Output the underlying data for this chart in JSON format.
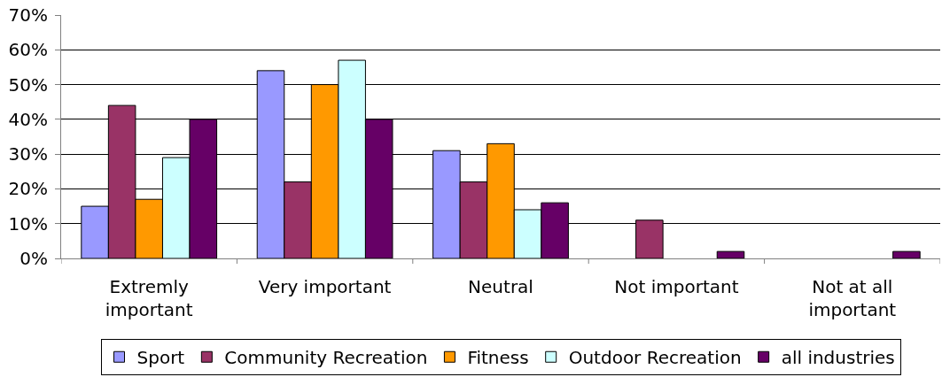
{
  "chart_data": {
    "type": "bar",
    "categories": [
      "Extremly important",
      "Very important",
      "Neutral",
      "Not important",
      "Not at all important"
    ],
    "series": [
      {
        "name": "Sport",
        "color": "#9999ff",
        "values": [
          15,
          54,
          31,
          0,
          0
        ]
      },
      {
        "name": "Community Recreation",
        "color": "#993366",
        "values": [
          44,
          22,
          22,
          11,
          0
        ]
      },
      {
        "name": "Fitness",
        "color": "#ff9900",
        "values": [
          17,
          50,
          33,
          0,
          0
        ]
      },
      {
        "name": "Outdoor Recreation",
        "color": "#ccffff",
        "values": [
          29,
          57,
          14,
          0,
          0
        ]
      },
      {
        "name": "all industries",
        "color": "#660066",
        "values": [
          40,
          40,
          16,
          2,
          2
        ]
      }
    ],
    "ylim": [
      0,
      70
    ],
    "yticks": [
      {
        "value": 0,
        "label": "0%"
      },
      {
        "value": 10,
        "label": "10%"
      },
      {
        "value": 20,
        "label": "20%"
      },
      {
        "value": 30,
        "label": "30%"
      },
      {
        "value": 40,
        "label": "40%"
      },
      {
        "value": 50,
        "label": "50%"
      },
      {
        "value": 60,
        "label": "60%"
      },
      {
        "value": 70,
        "label": "70%"
      }
    ],
    "grid": "y",
    "legend": "bottom"
  }
}
